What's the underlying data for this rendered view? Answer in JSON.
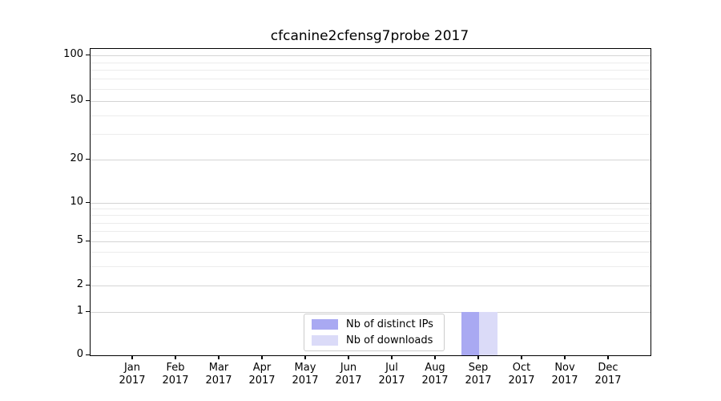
{
  "chart_data": {
    "type": "bar",
    "title": "cfcanine2cfensg7probe 2017",
    "xlabel": "",
    "ylabel": "",
    "yscale": "symlog",
    "ylim": [
      0,
      110
    ],
    "grid": "horizontal major and minor gridlines, no vertical grid",
    "legend_position": "inside lower-center of plot",
    "categories": [
      {
        "month": "Jan",
        "year": "2017"
      },
      {
        "month": "Feb",
        "year": "2017"
      },
      {
        "month": "Mar",
        "year": "2017"
      },
      {
        "month": "Apr",
        "year": "2017"
      },
      {
        "month": "May",
        "year": "2017"
      },
      {
        "month": "Jun",
        "year": "2017"
      },
      {
        "month": "Jul",
        "year": "2017"
      },
      {
        "month": "Aug",
        "year": "2017"
      },
      {
        "month": "Sep",
        "year": "2017"
      },
      {
        "month": "Oct",
        "year": "2017"
      },
      {
        "month": "Nov",
        "year": "2017"
      },
      {
        "month": "Dec",
        "year": "2017"
      }
    ],
    "series": [
      {
        "name": "Nb of distinct IPs",
        "color": "#a9a9f2",
        "values": [
          0,
          0,
          0,
          0,
          0,
          0,
          0,
          0,
          1,
          0,
          0,
          0
        ]
      },
      {
        "name": "Nb of downloads",
        "color": "#dbdbf8",
        "values": [
          0,
          0,
          0,
          0,
          0,
          0,
          0,
          0,
          1,
          0,
          0,
          0
        ]
      }
    ],
    "yticks": [
      0,
      1,
      2,
      5,
      10,
      20,
      50,
      100
    ],
    "yticks_minor": [
      3,
      4,
      6,
      7,
      8,
      9,
      30,
      40,
      60,
      70,
      80,
      90
    ]
  }
}
